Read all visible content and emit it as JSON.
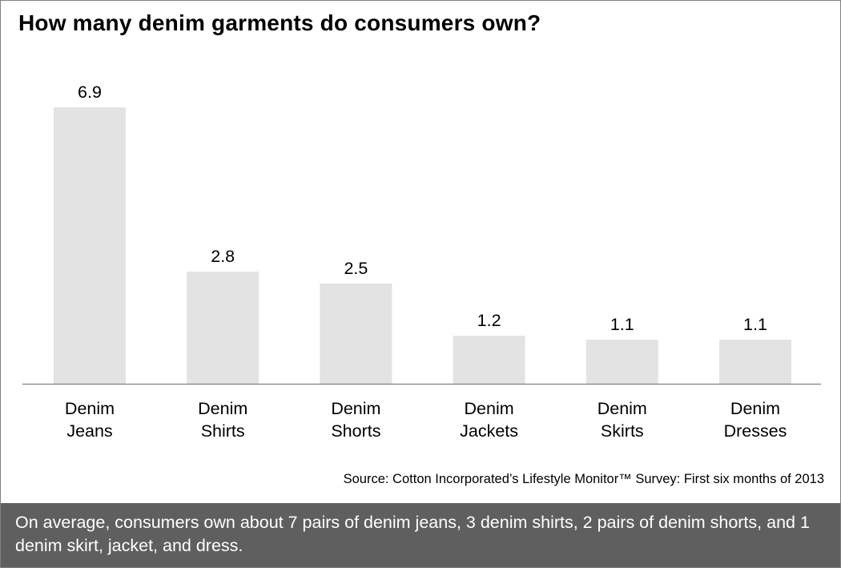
{
  "chart_data": {
    "type": "bar",
    "title": "How many denim garments do consumers own?",
    "categories": [
      "Denim Jeans",
      "Denim Shirts",
      "Denim Shorts",
      "Denim Jackets",
      "Denim Skirts",
      "Denim Dresses"
    ],
    "values": [
      6.9,
      2.8,
      2.5,
      1.2,
      1.1,
      1.1
    ],
    "data_labels": [
      "6.9",
      "2.8",
      "2.5",
      "1.2",
      "1.1",
      "1.1"
    ],
    "xlabel": "",
    "ylabel": "",
    "ylim": [
      0,
      7
    ],
    "grid": false,
    "legend": "none",
    "bar_color": "#e3e3e3",
    "axis_color": "#808080"
  },
  "source": "Source: Cotton Incorporated’s Lifestyle Monitor™ Survey: First six months of 2013",
  "footer": {
    "text": "On average, consumers own about 7 pairs of denim jeans, 3 denim shirts, 2 pairs of denim shorts, and 1 denim skirt, jacket, and dress.",
    "background": "#5f5f5f"
  }
}
